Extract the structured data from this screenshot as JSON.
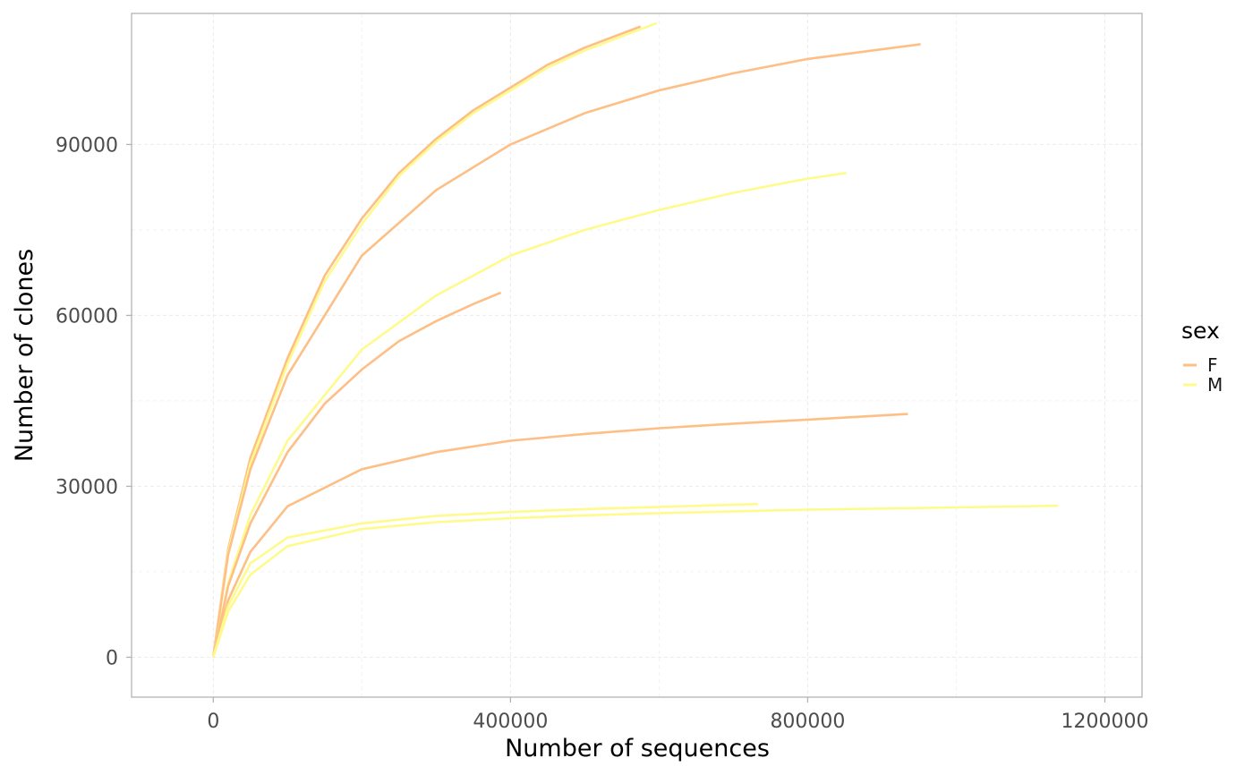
{
  "chart_data": {
    "type": "line",
    "title": "",
    "xlabel": "Number of sequences",
    "ylabel": "Number of clones",
    "xlim": [
      -110000,
      1250000
    ],
    "ylim": [
      -7000,
      113000
    ],
    "x_ticks": [
      0,
      400000,
      800000,
      1200000
    ],
    "x_tick_labels": [
      "0",
      "400000",
      "800000",
      "1200000"
    ],
    "y_ticks": [
      0,
      30000,
      60000,
      90000
    ],
    "y_tick_labels": [
      "0",
      "30000",
      "60000",
      "90000"
    ],
    "grid": true,
    "legend": {
      "title": "sex",
      "position": "right",
      "entries": [
        {
          "label": "F",
          "color": "#fdbf85"
        },
        {
          "label": "M",
          "color": "#fffa8c"
        }
      ]
    },
    "series": [
      {
        "group": "F",
        "x": [
          0,
          20000,
          50000,
          100000,
          150000,
          200000,
          250000,
          300000,
          350000,
          400000,
          450000,
          500000,
          575000
        ],
        "y": [
          0,
          19000,
          35000,
          52500,
          67000,
          77000,
          85000,
          91000,
          96000,
          100000,
          104000,
          107000,
          110700
        ]
      },
      {
        "group": "M",
        "x": [
          0,
          20000,
          50000,
          100000,
          150000,
          200000,
          250000,
          300000,
          350000,
          400000,
          450000,
          500000,
          597000
        ],
        "y": [
          0,
          18500,
          34000,
          51500,
          66000,
          76000,
          84500,
          90500,
          95500,
          99500,
          103500,
          106500,
          111300
        ]
      },
      {
        "group": "F",
        "x": [
          0,
          20000,
          50000,
          100000,
          200000,
          300000,
          400000,
          500000,
          600000,
          700000,
          800000,
          952000
        ],
        "y": [
          0,
          18000,
          33000,
          49500,
          70500,
          82000,
          90000,
          95500,
          99500,
          102500,
          105000,
          107600
        ]
      },
      {
        "group": "M",
        "x": [
          0,
          20000,
          50000,
          100000,
          200000,
          300000,
          400000,
          500000,
          600000,
          700000,
          800000,
          852000
        ],
        "y": [
          0,
          13000,
          25000,
          38000,
          54000,
          63500,
          70500,
          75000,
          78500,
          81500,
          84000,
          85000
        ]
      },
      {
        "group": "F",
        "x": [
          0,
          20000,
          50000,
          100000,
          150000,
          200000,
          250000,
          300000,
          350000,
          387000
        ],
        "y": [
          0,
          12500,
          23500,
          36000,
          44500,
          50500,
          55500,
          59000,
          62000,
          64000
        ]
      },
      {
        "group": "F",
        "x": [
          0,
          20000,
          50000,
          100000,
          200000,
          300000,
          400000,
          500000,
          600000,
          700000,
          800000,
          935000
        ],
        "y": [
          0,
          10000,
          18500,
          26500,
          33000,
          36000,
          38000,
          39200,
          40200,
          41000,
          41700,
          42700
        ]
      },
      {
        "group": "M",
        "x": [
          0,
          20000,
          50000,
          100000,
          200000,
          300000,
          400000,
          500000,
          600000,
          733000
        ],
        "y": [
          0,
          9000,
          16500,
          21000,
          23500,
          24800,
          25500,
          26000,
          26400,
          26900
        ]
      },
      {
        "group": "M",
        "x": [
          0,
          20000,
          50000,
          100000,
          200000,
          300000,
          400000,
          500000,
          600000,
          700000,
          800000,
          900000,
          1000000,
          1137000
        ],
        "y": [
          0,
          8000,
          14500,
          19500,
          22500,
          23700,
          24400,
          24900,
          25300,
          25600,
          25900,
          26100,
          26300,
          26600
        ]
      }
    ]
  }
}
